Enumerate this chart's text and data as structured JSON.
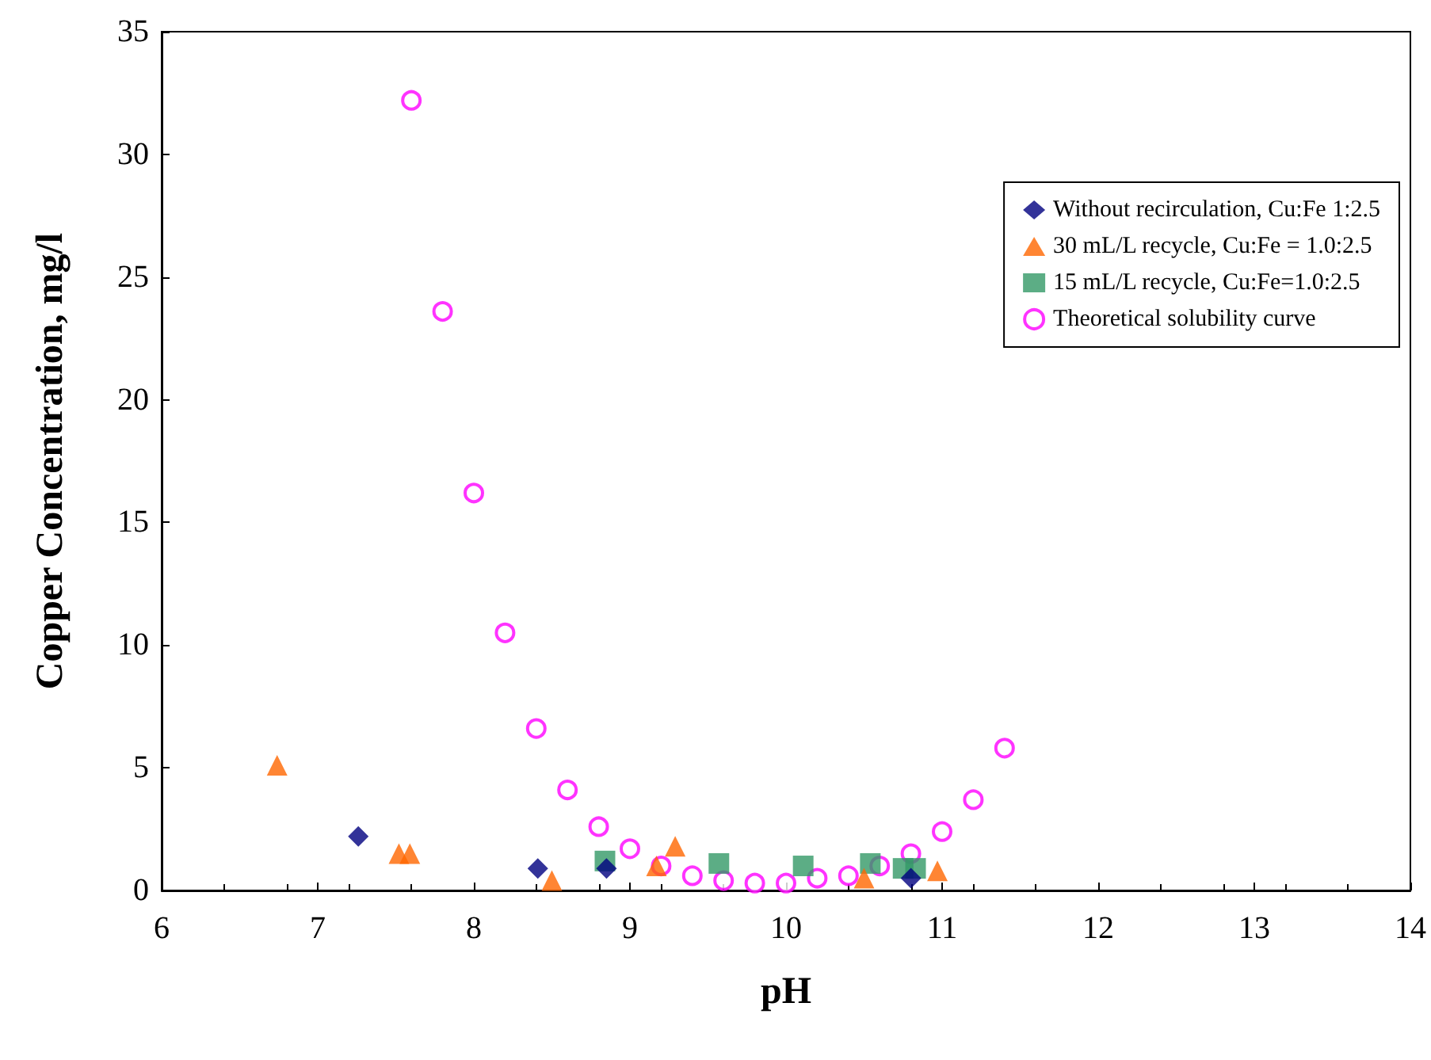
{
  "chart_data": {
    "type": "scatter",
    "xlabel": "pH",
    "ylabel": "Copper Concentration, mg/l",
    "xlim": [
      6,
      14
    ],
    "xticks": [
      6,
      7,
      8,
      9,
      10,
      11,
      12,
      13,
      14
    ],
    "ylim": [
      0,
      35
    ],
    "yticks": [
      0,
      5,
      10,
      15,
      20,
      25,
      30,
      35
    ],
    "grid": false,
    "legend": "top right",
    "series": [
      {
        "name": "Without recirculation, Cu:Fe 1:2.5",
        "color": "#000080",
        "marker": "diamond",
        "x": [
          7.26,
          8.41,
          8.85,
          10.8
        ],
        "values": [
          2.2,
          0.9,
          0.9,
          0.5
        ]
      },
      {
        "name": "30 mL/L recycle, Cu:Fe = 1.0:2.5",
        "color": "#ff6600",
        "marker": "triangle",
        "x": [
          6.74,
          7.52,
          7.59,
          8.5,
          9.17,
          9.29,
          10.5,
          10.97
        ],
        "values": [
          5.1,
          1.5,
          1.5,
          0.4,
          1.0,
          1.8,
          0.5,
          0.8
        ]
      },
      {
        "name": "15 mL/L recycle, Cu:Fe=1.0:2.5",
        "color": "#339966",
        "marker": "square",
        "x": [
          8.84,
          9.57,
          10.11,
          10.54,
          10.75,
          10.83
        ],
        "values": [
          1.2,
          1.1,
          1.0,
          1.1,
          0.9,
          0.9
        ]
      },
      {
        "name": "Theoretical solubility curve",
        "color": "#ff00ff",
        "marker": "circle",
        "x": [
          7.6,
          7.8,
          8.0,
          8.2,
          8.4,
          8.6,
          8.8,
          9.0,
          9.2,
          9.4,
          9.6,
          9.8,
          10.0,
          10.2,
          10.4,
          10.6,
          10.8,
          11.0,
          11.2,
          11.4
        ],
        "values": [
          32.2,
          23.6,
          16.2,
          10.5,
          6.6,
          4.1,
          2.6,
          1.7,
          1.0,
          0.6,
          0.4,
          0.3,
          0.3,
          0.5,
          0.6,
          1.0,
          1.5,
          2.4,
          3.7,
          5.8
        ]
      }
    ]
  }
}
